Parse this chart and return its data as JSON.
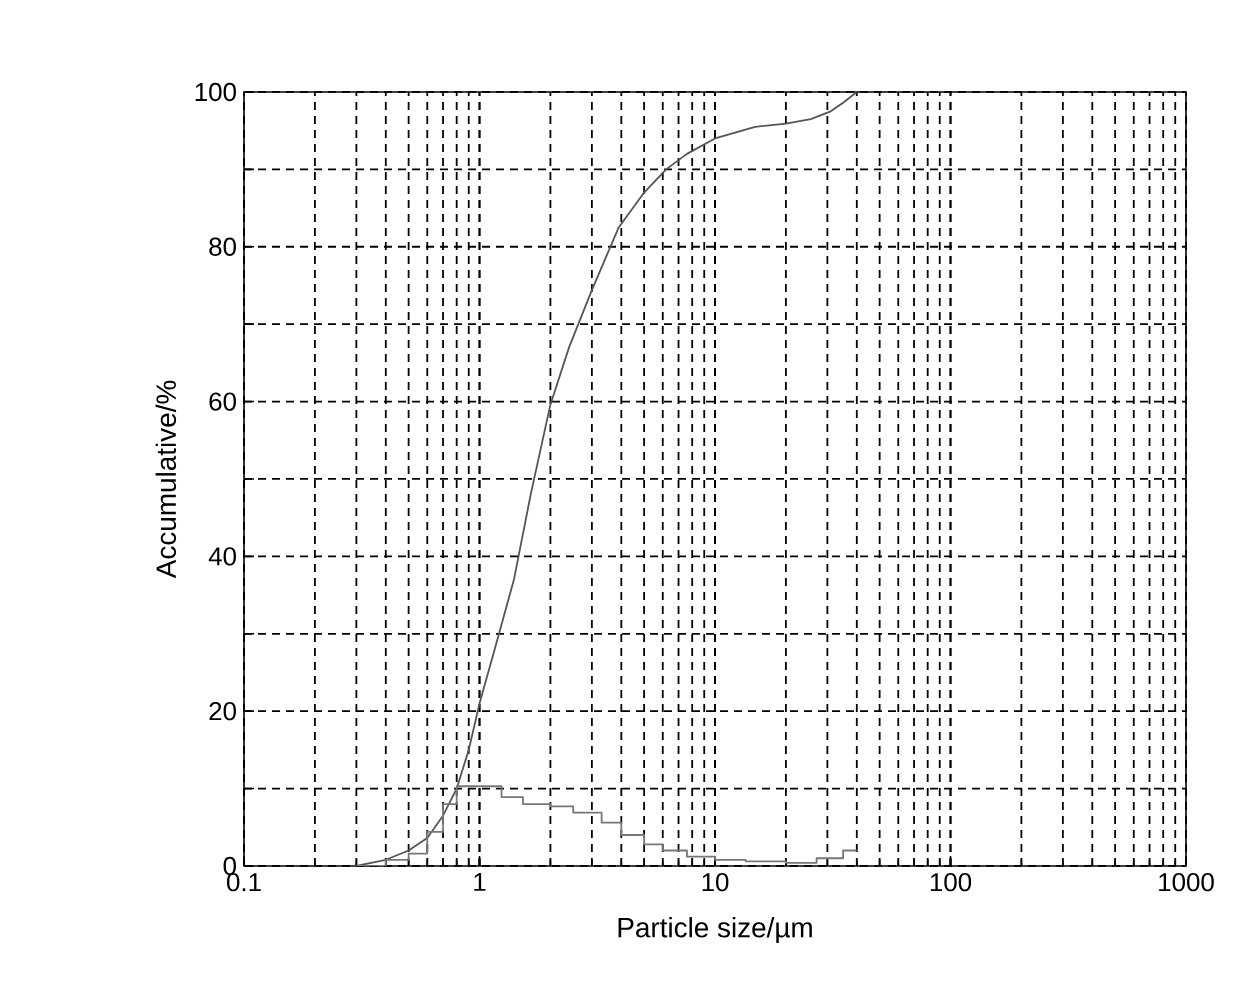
{
  "chart_data": {
    "type": "line",
    "xlabel": "Particle size/µm",
    "ylabel": "Accumulative/%",
    "log": "x",
    "grid": true,
    "xlim": [
      0.1,
      1000
    ],
    "xticks": [
      0.1,
      1,
      10,
      100,
      1000
    ],
    "ylim": [
      0,
      100
    ],
    "yticks": [
      0,
      {
        "value": 10,
        "label": null
      },
      20,
      {
        "value": 30,
        "label": null
      },
      40,
      {
        "value": 50,
        "label": null
      },
      60,
      {
        "value": 70,
        "label": null
      },
      80,
      {
        "value": 90,
        "label": null
      },
      100
    ],
    "series": [
      {
        "color": "#555555",
        "x": [
          0.3,
          0.4,
          0.5,
          0.6,
          0.7,
          0.8,
          0.9,
          1.0,
          1.16,
          1.4,
          1.65,
          2.0,
          2.4,
          3.0,
          3.9,
          5.0,
          6.2,
          7.6,
          10,
          14.8,
          20,
          25.5,
          31,
          35,
          40
        ],
        "values": [
          0,
          0.8,
          2,
          3.6,
          6.5,
          10,
          15,
          21,
          28,
          37,
          48,
          59.6,
          67,
          74.4,
          82.5,
          87,
          90,
          92,
          94,
          95.5,
          95.9,
          96.5,
          97.5,
          98.6,
          100
        ]
      },
      {
        "type": "step",
        "color": "#777777",
        "x": [
          0.3,
          0.4,
          0.5,
          0.6,
          0.7,
          0.8,
          1.24,
          1.53,
          2.0,
          2.5,
          3.3,
          4.0,
          5.0,
          6.0,
          7.6,
          10,
          13.5,
          20,
          27,
          35,
          40
        ],
        "values": [
          0,
          0.8,
          1.6,
          4.4,
          8,
          10.3,
          8.9,
          8,
          7.7,
          6.9,
          5.6,
          4,
          2.8,
          2,
          1.2,
          0.8,
          0.6,
          0.4,
          1,
          2,
          2
        ]
      }
    ]
  }
}
